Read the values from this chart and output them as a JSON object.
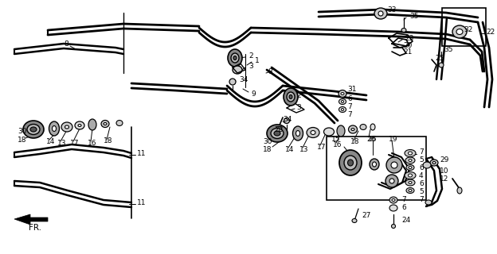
{
  "figsize": [
    6.24,
    3.2
  ],
  "dpi": 100,
  "bg_color": "#ffffff",
  "line_color": "#000000",
  "text_color": "#000000",
  "lw_main": 1.4,
  "lw_thin": 0.8,
  "fs_label": 6.5
}
